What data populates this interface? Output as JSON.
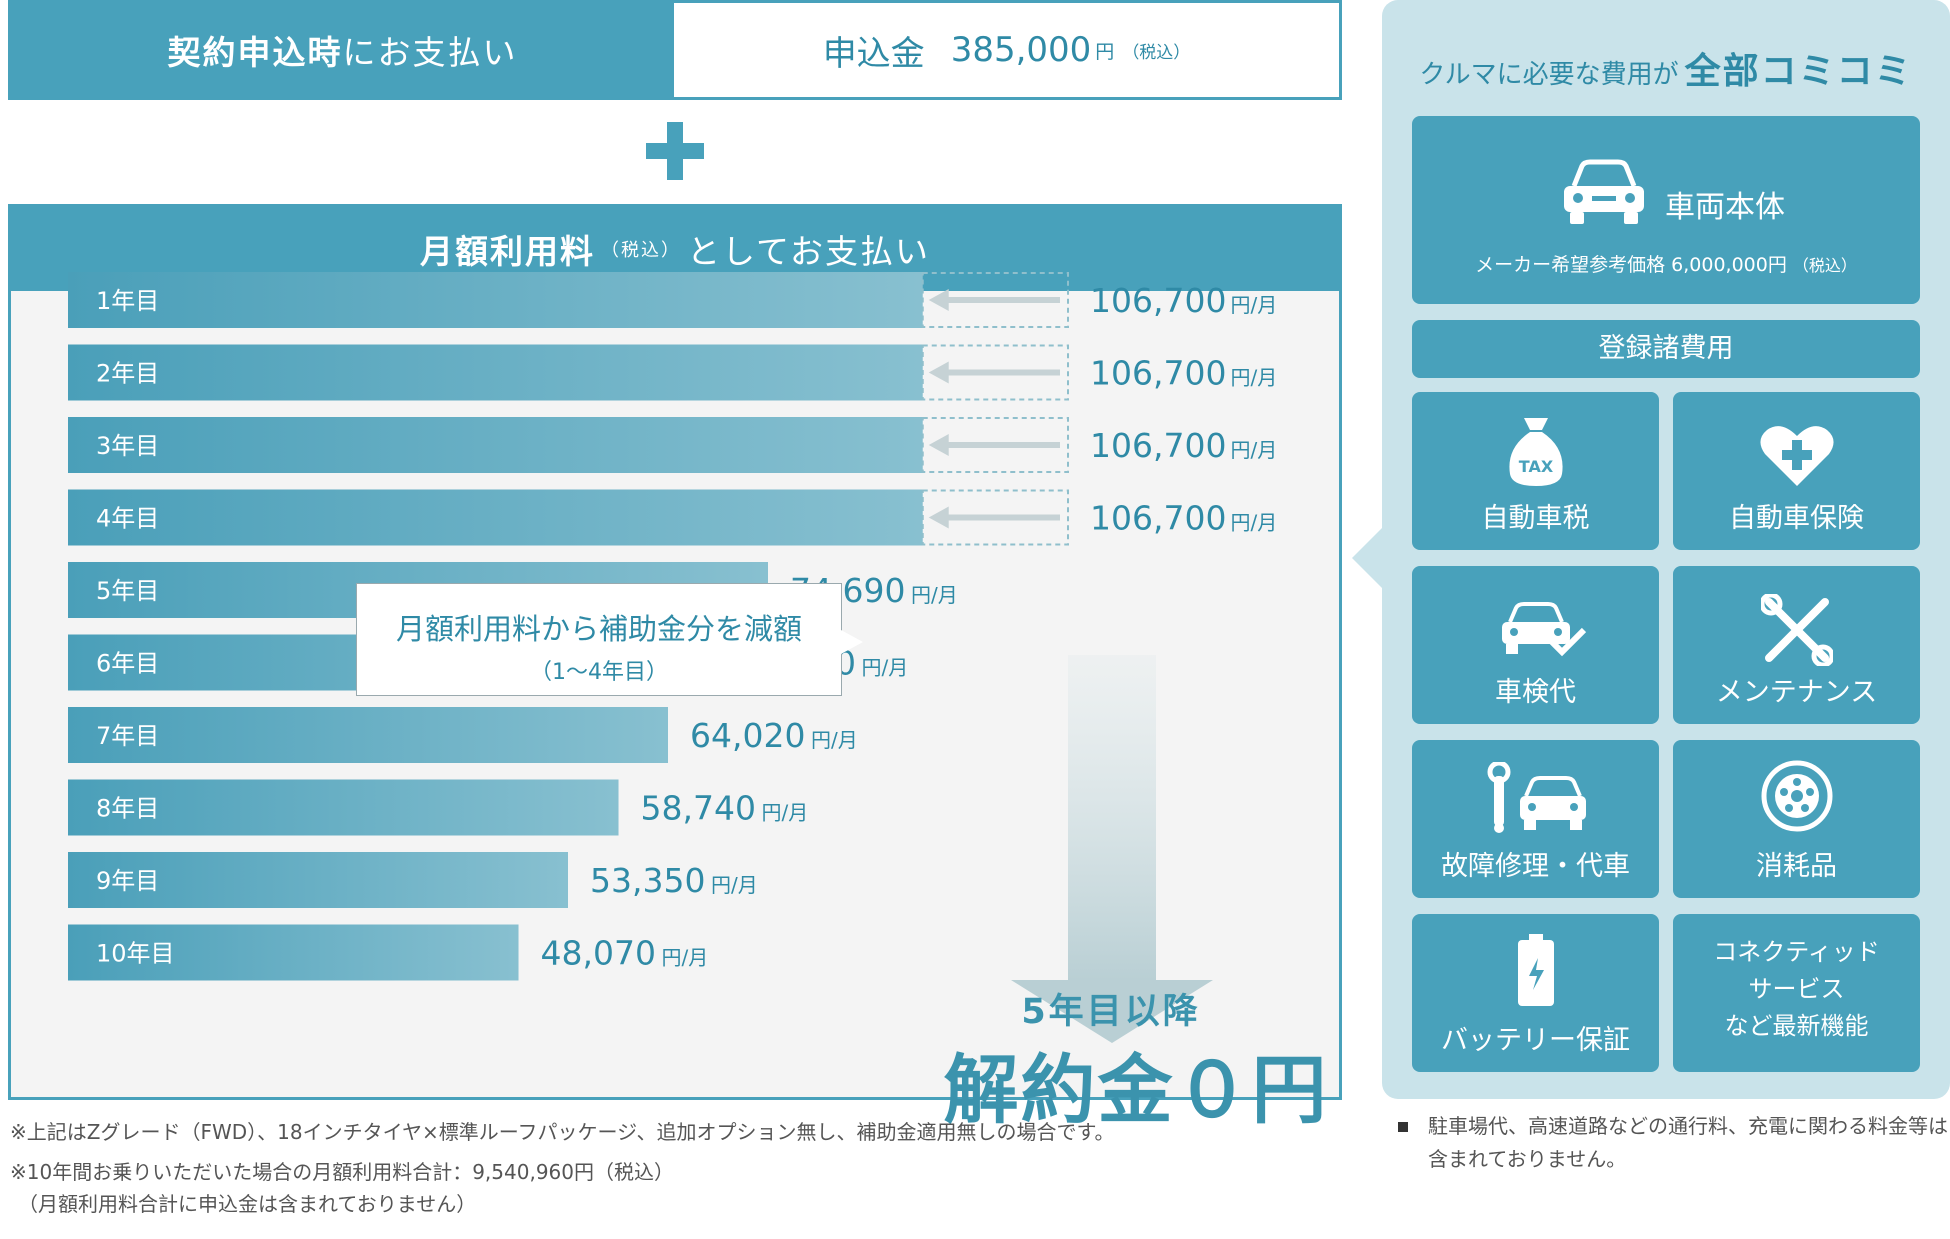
{
  "application_fee": {
    "left_bold": "契約申込時",
    "left_rest": "にお支払い",
    "label": "申込金",
    "amount": "385,000",
    "unit": "円",
    "tax_note": "（税込）"
  },
  "monthly_header": {
    "bold": "月額利用料",
    "tax_note": "（税込）",
    "rest": "としてお支払い"
  },
  "callout": {
    "line1": "月額利用料から補助金分を減額",
    "line2": "（1～4年目）"
  },
  "zero_fee": {
    "sub": "5年目以降",
    "main": "解約金０円"
  },
  "chart_data": {
    "type": "bar",
    "orientation": "horizontal",
    "categories": [
      "1年目",
      "2年目",
      "3年目",
      "4年目",
      "5年目",
      "6年目",
      "7年目",
      "8年目",
      "9年目",
      "10年目"
    ],
    "values": [
      106700,
      106700,
      106700,
      106700,
      74690,
      69410,
      64020,
      58740,
      53350,
      48070
    ],
    "value_labels": [
      "106,700",
      "106,700",
      "106,700",
      "106,700",
      "74,690",
      "69,410",
      "64,020",
      "58,740",
      "53,350",
      "48,070"
    ],
    "unit_label": "円/月",
    "subsidy_reduced_years": [
      1,
      2,
      3,
      4
    ],
    "reduced_bar_value": 91200,
    "bar_color": "#4a9fb9",
    "bar_fade_color": "#88c0d0",
    "grid": false
  },
  "side": {
    "title_prefix": "クルマに必要な費用が",
    "title_bold": "全部コミコミ",
    "vehicle": {
      "name": "車両本体",
      "price_text": "メーカー希望参考価格 6,000,000円",
      "tax_note": "（税込）",
      "icon": "car-front-icon"
    },
    "registration": "登録諸費用",
    "tiles": [
      {
        "label": "自動車税",
        "icon": "tax-bag-icon"
      },
      {
        "label": "自動車保険",
        "icon": "heart-cross-icon"
      },
      {
        "label": "車検代",
        "icon": "car-check-icon"
      },
      {
        "label": "メンテナンス",
        "icon": "tools-icon"
      },
      {
        "label": "故障修理・代車",
        "icon": "wrench-car-icon"
      },
      {
        "label": "消耗品",
        "icon": "tire-icon"
      },
      {
        "label": "バッテリー保証",
        "icon": "battery-icon"
      }
    ],
    "tax_icon_text": "TAX",
    "connected": {
      "line1": "コネクティッド",
      "line2": "サービス",
      "line3": "など最新機能"
    },
    "note": "駐車場代、高速道路などの通行料、充電に関わる料金等は含まれておりません。"
  },
  "notes": {
    "line1": "※上記はZグレード（FWD）、18インチタイヤ×標準ルーフパッケージ、追加オプション無し、補助金適用無しの場合です。",
    "line2": "※10年間お乗りいただいた場合の月額利用料合計：9,540,960円（税込）",
    "line3": "（月額利用料合計に申込金は含まれておりません）"
  },
  "colors": {
    "primary": "#48a1bb",
    "accent_text": "#2f8aa6",
    "side_bg": "#c9e3ea",
    "panel_bg": "#f4f4f4"
  }
}
